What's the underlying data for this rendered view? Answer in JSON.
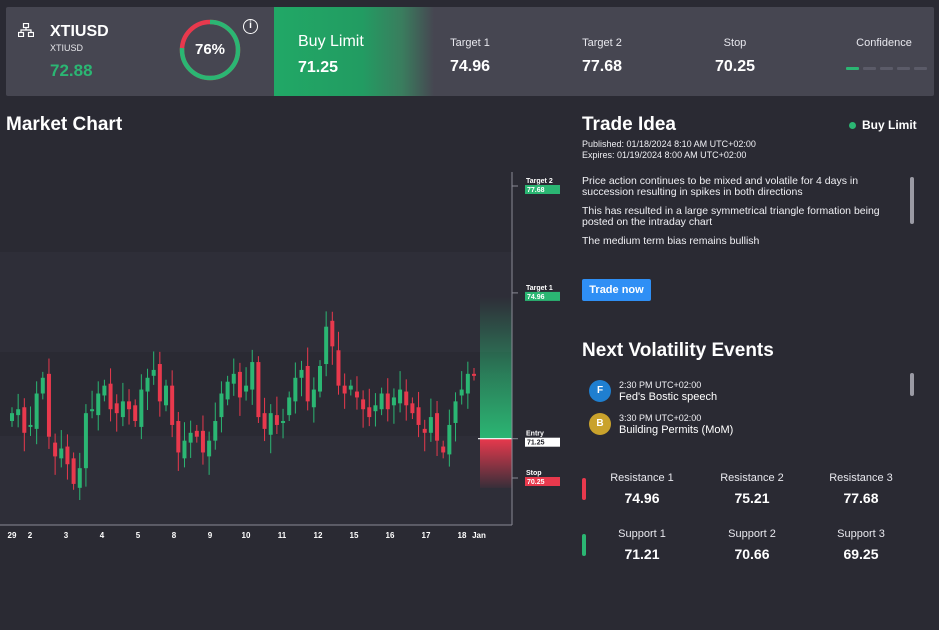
{
  "header": {
    "symbol": "XTIUSD",
    "symbol_sub": "XTIUSD",
    "price": "72.88",
    "gauge_value": 76,
    "gauge_text": "76%",
    "info_glyph": "i",
    "order_type": "Buy Limit",
    "order_price": "71.25",
    "target1_label": "Target 1",
    "target1_value": "74.96",
    "target2_label": "Target 2",
    "target2_value": "77.68",
    "stop_label": "Stop",
    "stop_value": "70.25",
    "confidence_label": "Confidence",
    "confidence_level": 1,
    "confidence_max": 5
  },
  "chart": {
    "title": "Market Chart",
    "x_labels": [
      "29",
      "2",
      "3",
      "4",
      "5",
      "8",
      "9",
      "10",
      "11",
      "12",
      "15",
      "16",
      "17",
      "18",
      "Jan"
    ],
    "markers": [
      {
        "label": "Target 2",
        "value": "77.68",
        "kind": "target"
      },
      {
        "label": "Target 1",
        "value": "74.96",
        "kind": "target"
      },
      {
        "label": "Entry",
        "value": "71.25",
        "kind": "entry"
      },
      {
        "label": "Stop",
        "value": "70.25",
        "kind": "stop"
      }
    ]
  },
  "idea": {
    "title": "Trade Idea",
    "status": "Buy Limit",
    "published": "Published:  01/18/2024 8:10 AM UTC+02:00",
    "expires": "Expires:  01/19/2024 8:00 AM UTC+02:00",
    "paragraphs": [
      "Price action continues to be mixed and volatile for 4 days in succession resulting in spikes in both directions",
      "This has resulted in a large symmetrical triangle formation being posted on the intraday chart",
      "The medium term bias remains bullish"
    ],
    "button": "Trade now"
  },
  "events": {
    "title": "Next Volatility Events",
    "items": [
      {
        "badge": "F",
        "time": "2:30 PM UTC+02:00",
        "name": "Fed's Bostic speech",
        "color": "#1f7fd0"
      },
      {
        "badge": "B",
        "time": "3:30 PM UTC+02:00",
        "name": "Building Permits (MoM)",
        "color": "#c9a22c"
      }
    ]
  },
  "levels": {
    "resistance": [
      {
        "label": "Resistance 1",
        "value": "74.96"
      },
      {
        "label": "Resistance 2",
        "value": "75.21"
      },
      {
        "label": "Resistance 3",
        "value": "77.68"
      }
    ],
    "support": [
      {
        "label": "Support 1",
        "value": "71.21"
      },
      {
        "label": "Support 2",
        "value": "70.66"
      },
      {
        "label": "Support 3",
        "value": "69.25"
      }
    ]
  },
  "colors": {
    "up": "#2bb673",
    "down": "#e8394d",
    "accent": "#2f8ff5",
    "bg": "#2a2a33",
    "panel": "#464651"
  }
}
